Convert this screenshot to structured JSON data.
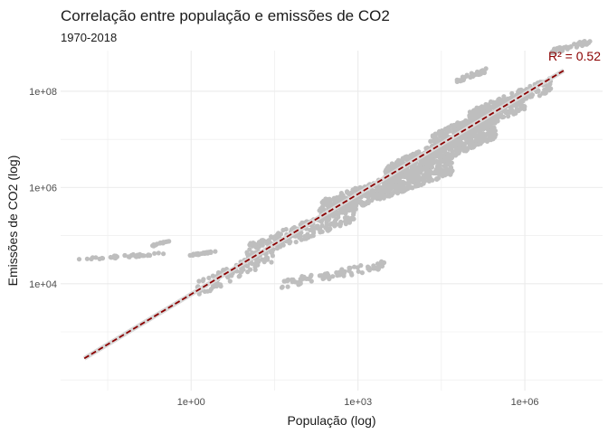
{
  "chart_data": {
    "type": "scatter",
    "title": "Correlação entre população e emissões de CO2",
    "subtitle": "1970-2018",
    "xlabel": "População (log)",
    "ylabel": "Emissões de CO2 (log)",
    "x_scale": "log10",
    "y_scale": "log10",
    "xlim": [
      0.0045,
      25000000
    ],
    "ylim": [
      60,
      700000000
    ],
    "x_ticks": [
      {
        "value": 1,
        "label": "1e+00"
      },
      {
        "value": 1000,
        "label": "1e+03"
      },
      {
        "value": 1000000,
        "label": "1e+06"
      }
    ],
    "y_ticks": [
      {
        "value": 10000,
        "label": "1e+04"
      },
      {
        "value": 1000000,
        "label": "1e+06"
      },
      {
        "value": 100000000,
        "label": "1e+08"
      }
    ],
    "grid": true,
    "point_color": "#bebebe",
    "trendline": {
      "color": "#8b0000",
      "style": "dashed",
      "x_start": 0.012,
      "y_start": 280,
      "x_end": 5000000,
      "y_end": 270000000
    },
    "annotation": {
      "text": "R² = 0.52",
      "x": 5000000,
      "y": 1400000000,
      "color": "#8b0000"
    },
    "point_clusters": [
      {
        "x_from": 0.009,
        "x_to": 0.35,
        "y_from": 30000,
        "y_to": 45000,
        "n": 40
      },
      {
        "x_from": 0.2,
        "x_to": 0.4,
        "y_from": 58000,
        "y_to": 80000,
        "n": 14
      },
      {
        "x_from": 0.95,
        "x_to": 2.8,
        "y_from": 38000,
        "y_to": 48000,
        "n": 30
      },
      {
        "x_from": 1.2,
        "x_to": 30,
        "y_from": 5000,
        "y_to": 60000,
        "n": 90
      },
      {
        "x_from": 10,
        "x_to": 1000,
        "y_from": 30000,
        "y_to": 500000,
        "n": 220
      },
      {
        "x_from": 40,
        "x_to": 3000,
        "y_from": 8000,
        "y_to": 30000,
        "n": 80
      },
      {
        "x_from": 200,
        "x_to": 50000,
        "y_from": 200000,
        "y_to": 5000000,
        "n": 500
      },
      {
        "x_from": 3000,
        "x_to": 300000,
        "y_from": 1000000,
        "y_to": 30000000,
        "n": 520
      },
      {
        "x_from": 20000,
        "x_to": 1000000,
        "y_from": 5000000,
        "y_to": 100000000,
        "n": 320
      },
      {
        "x_from": 100000,
        "x_to": 3000000,
        "y_from": 20000000,
        "y_to": 200000000,
        "n": 200
      },
      {
        "x_from": 3000000,
        "x_to": 15000000,
        "y_from": 600000000,
        "y_to": 1200000000,
        "n": 50
      },
      {
        "x_from": 60000,
        "x_to": 200000,
        "y_from": 150000000,
        "y_to": 300000000,
        "n": 40
      }
    ]
  }
}
